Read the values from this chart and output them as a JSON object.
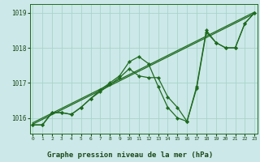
{
  "line_color": "#1f6b1f",
  "bg_color": "#cce8e8",
  "grid_color": "#a8d4cc",
  "xlabel": "Graphe pression niveau de la mer (hPa)",
  "xlabel_color": "#1a4a1a",
  "xlabel_bg": "#7ab87a",
  "tick_color": "#1a4a1a",
  "ylim": [
    1015.55,
    1019.25
  ],
  "xlim": [
    -0.3,
    23.3
  ],
  "yticks": [
    1016,
    1017,
    1018,
    1019
  ],
  "xticks": [
    0,
    1,
    2,
    3,
    4,
    5,
    6,
    7,
    8,
    9,
    10,
    11,
    12,
    13,
    14,
    15,
    16,
    17,
    18,
    19,
    20,
    21,
    22,
    23
  ],
  "series_straight_1": {
    "x": [
      0,
      23
    ],
    "y": [
      1015.82,
      1018.98
    ]
  },
  "series_straight_2": {
    "x": [
      0,
      23
    ],
    "y": [
      1015.86,
      1019.02
    ]
  },
  "series_markers_1": {
    "x": [
      0,
      1,
      2,
      3,
      4,
      5,
      6,
      7,
      8,
      9,
      10,
      11,
      12,
      13,
      14,
      15,
      16,
      17,
      18,
      19,
      20,
      21,
      22,
      23
    ],
    "y": [
      1015.8,
      1015.8,
      1016.15,
      1016.15,
      1016.1,
      1016.3,
      1016.55,
      1016.8,
      1017.0,
      1017.2,
      1017.6,
      1017.75,
      1017.55,
      1016.9,
      1016.3,
      1016.0,
      1015.9,
      1016.9,
      1018.5,
      1018.15,
      1018.0,
      1018.0,
      1018.7,
      1019.0
    ]
  },
  "series_markers_2": {
    "x": [
      0,
      1,
      2,
      3,
      4,
      5,
      6,
      7,
      8,
      9,
      10,
      11,
      12,
      13,
      14,
      15,
      16,
      17,
      18,
      19,
      20,
      21,
      22,
      23
    ],
    "y": [
      1015.8,
      1015.8,
      1016.15,
      1016.15,
      1016.1,
      1016.3,
      1016.55,
      1016.75,
      1016.95,
      1017.15,
      1017.4,
      1017.2,
      1017.15,
      1017.15,
      1016.6,
      1016.3,
      1015.9,
      1016.85,
      1018.45,
      1018.15,
      1018.0,
      1018.0,
      1018.7,
      1019.0
    ]
  }
}
